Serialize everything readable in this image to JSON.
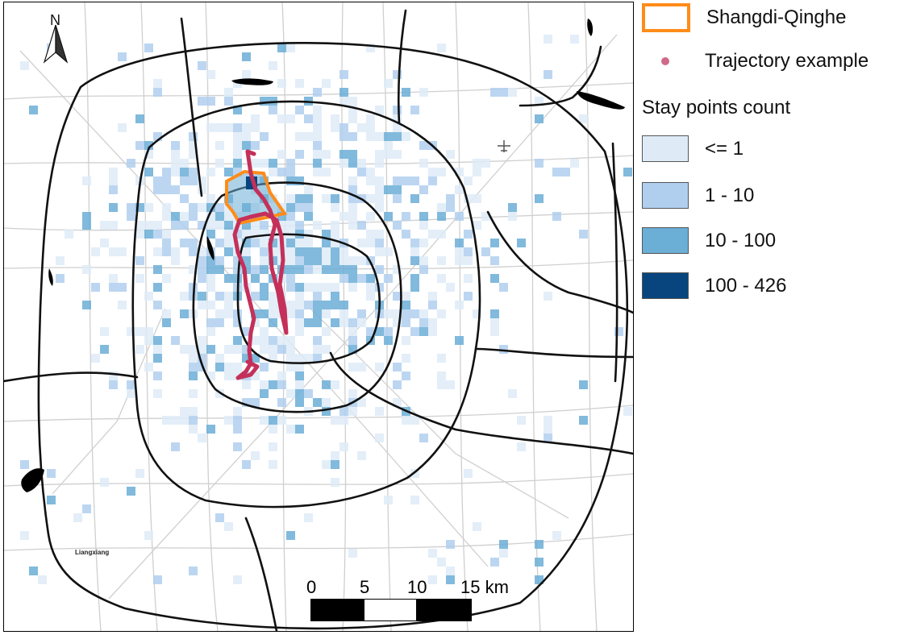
{
  "map": {
    "north_label": "N",
    "place_label": "Liangxiang",
    "colors": {
      "road_major": "#111111",
      "road_minor": "#c8c8c8",
      "region_outline": "#ff8c1a",
      "trajectory": "#c4305a",
      "water": "#000000"
    },
    "scale_bar": {
      "labels": [
        "0",
        "5",
        "10",
        "15 km"
      ]
    },
    "icons": [
      "north-arrow-icon",
      "airport-icon"
    ]
  },
  "legend": {
    "region_label": "Shangdi-Qinghe",
    "trajectory_label": "Trajectory example",
    "stay_title": "Stay points count",
    "classes": [
      {
        "label": "<= 1",
        "color": "#deebf7"
      },
      {
        "label": "1 - 10",
        "color": "#b0cfee"
      },
      {
        "label": "10 - 100",
        "color": "#6baed6"
      },
      {
        "label": "100 - 426",
        "color": "#08457e"
      }
    ]
  }
}
